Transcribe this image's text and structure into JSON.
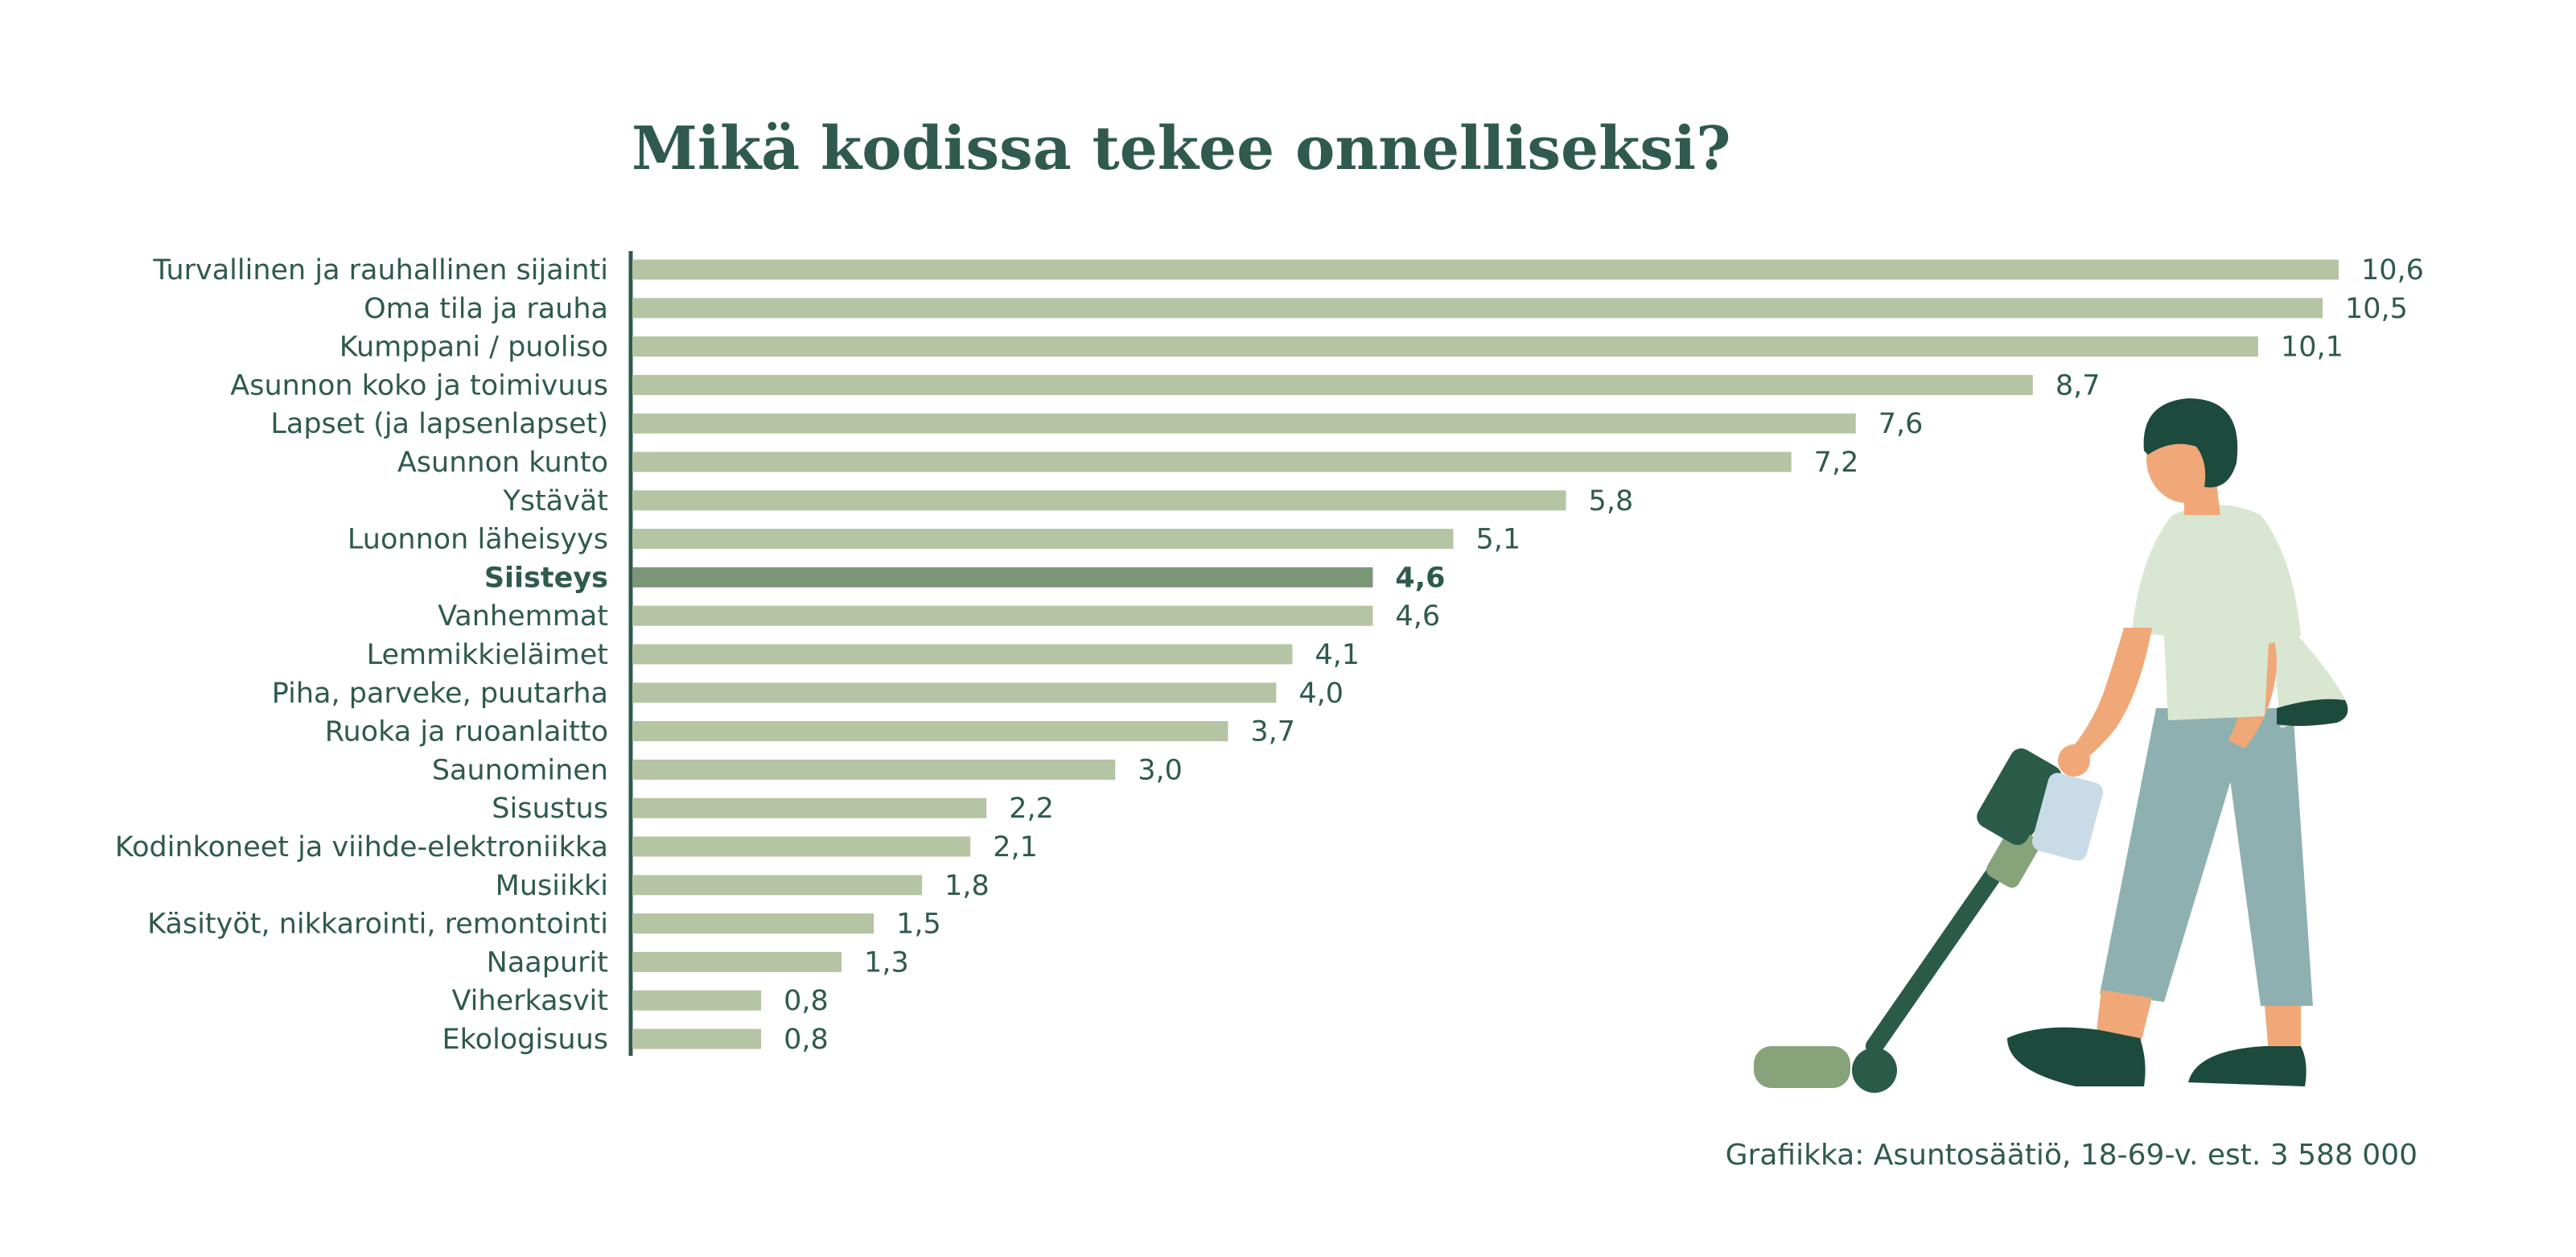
{
  "chart_data": {
    "type": "bar",
    "orientation": "horizontal",
    "title": "Mikä kodissa tekee onnelliseksi?",
    "categories": [
      "Turvallinen ja rauhallinen sijainti",
      "Oma tila ja rauha",
      "Kumppani / puoliso",
      "Asunnon koko ja toimivuus",
      "Lapset (ja lapsenlapset)",
      "Asunnon kunto",
      "Ystävät",
      "Luonnon läheisyys",
      "Siisteys",
      "Vanhemmat",
      "Lemmikkieläimet",
      "Piha, parveke, puutarha",
      "Ruoka ja ruoanlaitto",
      "Saunominen",
      "Sisustus",
      "Kodinkoneet ja viihde-elektroniikka",
      "Musiikki",
      "Käsityöt, nikkarointi, remontointi",
      "Naapurit",
      "Viherkasvit",
      "Ekologisuus"
    ],
    "values": [
      10.6,
      10.5,
      10.1,
      8.7,
      7.6,
      7.2,
      5.8,
      5.1,
      4.6,
      4.6,
      4.1,
      4.0,
      3.7,
      3.0,
      2.2,
      2.1,
      1.8,
      1.5,
      1.3,
      0.8,
      0.8
    ],
    "value_labels": [
      "10,6",
      "10,5",
      "10,1",
      "8,7",
      "7,6",
      "7,2",
      "5,8",
      "5,1",
      "4,6",
      "4,6",
      "4,1",
      "4,0",
      "3,7",
      "3,0",
      "2,2",
      "2,1",
      "1,8",
      "1,5",
      "1,3",
      "0,8",
      "0,8"
    ],
    "highlighted_category": "Siisteys",
    "xlim": [
      0,
      10.6
    ],
    "grid": false,
    "legend": "none"
  },
  "source": "Grafiikka: Asuntosäätiö, 18-69-v. est. 3 588 000",
  "colors": {
    "title": "#2f5a4d",
    "text": "#2f5a4d",
    "bar": "#b5c4a3",
    "bar_highlight": "#7a9677",
    "axis": "#2f5a4d",
    "shirt": "#d8e6d2",
    "pants": "#8fb0b0",
    "skin": "#f0a878",
    "hair": "#1c4a3c",
    "shoes": "#1c4a3c",
    "vacuum_dark": "#2a5a48",
    "vacuum_light": "#86a37a",
    "vacuum_bin": "#c9dbe6"
  },
  "illustration": {
    "name": "person-vacuuming-illustration"
  }
}
